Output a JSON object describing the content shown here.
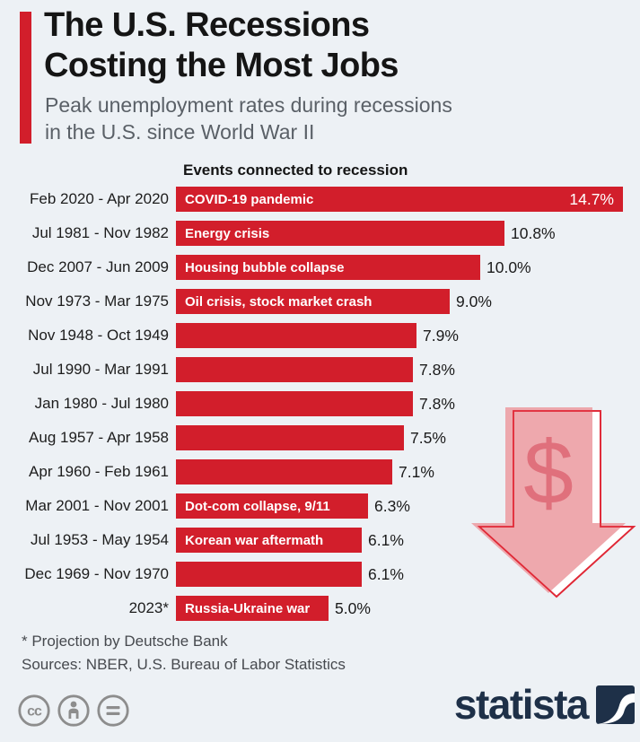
{
  "header": {
    "title_line1": "The U.S. Recessions",
    "title_line2": "Costing the Most Jobs",
    "subtitle_line1": "Peak unemployment rates during recessions",
    "subtitle_line2": "in the U.S. since World War II"
  },
  "chart_data": {
    "type": "bar",
    "orientation": "horizontal",
    "title": "The U.S. Recessions Costing the Most Jobs",
    "subtitle": "Peak unemployment rates during recessions in the U.S. since World War II",
    "column_header": "Events connected to recession",
    "value_unit": "%",
    "xlim": [
      0,
      14.7
    ],
    "grid": false,
    "legend": false,
    "rows": [
      {
        "period": "Feb 2020 - Apr 2020",
        "event": "COVID-19 pandemic",
        "value": 14.7,
        "value_label": "14.7%",
        "value_inside": true
      },
      {
        "period": "Jul 1981 - Nov 1982",
        "event": "Energy crisis",
        "value": 10.8,
        "value_label": "10.8%",
        "value_inside": false
      },
      {
        "period": "Dec 2007 - Jun 2009",
        "event": "Housing bubble collapse",
        "value": 10.0,
        "value_label": "10.0%",
        "value_inside": false
      },
      {
        "period": "Nov 1973 - Mar 1975",
        "event": "Oil crisis, stock market crash",
        "value": 9.0,
        "value_label": "9.0%",
        "value_inside": false
      },
      {
        "period": "Nov 1948 - Oct 1949",
        "event": "",
        "value": 7.9,
        "value_label": "7.9%",
        "value_inside": false
      },
      {
        "period": "Jul 1990 - Mar 1991",
        "event": "",
        "value": 7.8,
        "value_label": "7.8%",
        "value_inside": false
      },
      {
        "period": "Jan 1980 - Jul 1980",
        "event": "",
        "value": 7.8,
        "value_label": "7.8%",
        "value_inside": false
      },
      {
        "period": "Aug 1957 - Apr 1958",
        "event": "",
        "value": 7.5,
        "value_label": "7.5%",
        "value_inside": false
      },
      {
        "period": "Apr 1960 - Feb 1961",
        "event": "",
        "value": 7.1,
        "value_label": "7.1%",
        "value_inside": false
      },
      {
        "period": "Mar 2001 - Nov 2001",
        "event": "Dot-com collapse, 9/11",
        "value": 6.3,
        "value_label": "6.3%",
        "value_inside": false
      },
      {
        "period": "Jul 1953 - May 1954",
        "event": "Korean war aftermath",
        "value": 6.1,
        "value_label": "6.1%",
        "value_inside": false
      },
      {
        "period": "Dec 1969 - Nov 1970",
        "event": "",
        "value": 6.1,
        "value_label": "6.1%",
        "value_inside": false
      },
      {
        "period": "2023*",
        "event": "Russia-Ukraine war",
        "value": 5.0,
        "value_label": "5.0%",
        "value_inside": false
      }
    ],
    "annotation_symbol": "$"
  },
  "footer": {
    "footnote": "* Projection by Deutsche Bank",
    "sources": "Sources: NBER, U.S. Bureau of Labor Statistics",
    "license_icons": [
      "cc",
      "attribution",
      "no-derivatives"
    ],
    "brand": "statista"
  },
  "colors": {
    "background": "#edf1f5",
    "bar": "#d21e2b",
    "accent_strip": "#d21e2b",
    "brand_navy": "#1e3048",
    "arrow_fill": "#eda3a9",
    "arrow_outline": "#e02836",
    "arrow_dollar": "#e0707c",
    "subtitle_gray": "#5a6067",
    "license_gray": "#8d8d8d"
  }
}
